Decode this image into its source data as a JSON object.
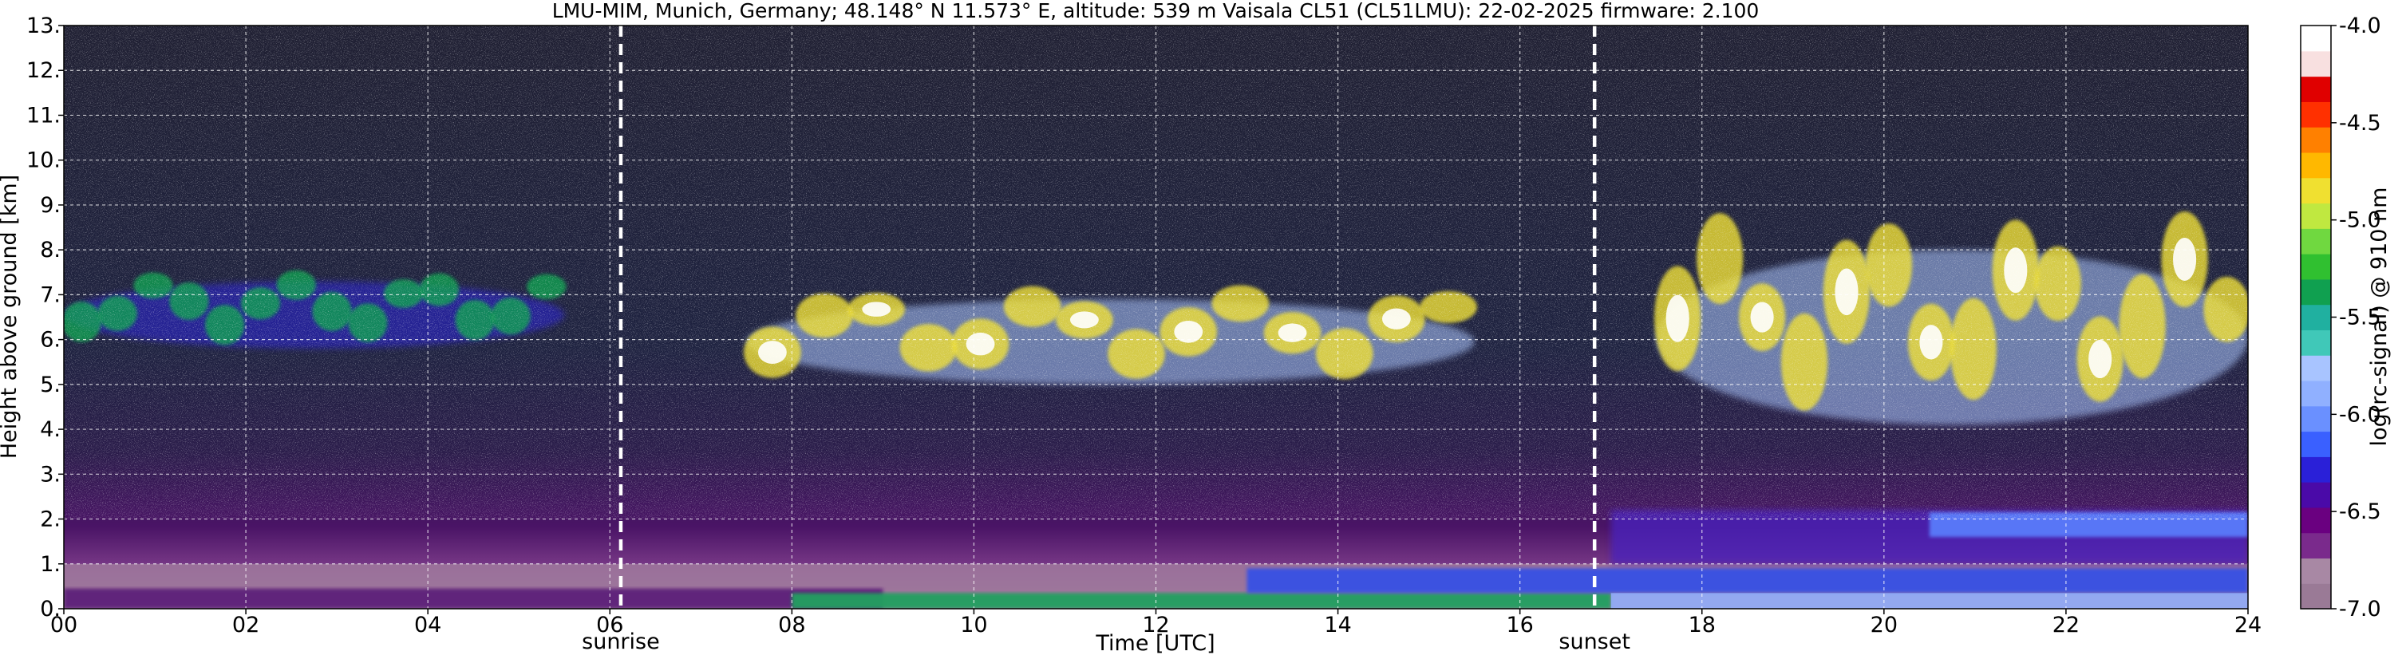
{
  "chart_data": {
    "type": "heatmap",
    "title": "LMU-MIM, Munich, Germany; 48.148° N 11.573° E, altitude: 539 m    Vaisala CL51 (CL51LMU): 22-02-2025    firmware: 2.100",
    "xlabel": "Time [UTC]",
    "ylabel": "Height above ground [km]",
    "xlim": [
      0,
      24
    ],
    "ylim": [
      0,
      13
    ],
    "x_ticks": [
      0,
      2,
      4,
      6,
      8,
      10,
      12,
      14,
      16,
      18,
      20,
      22,
      24
    ],
    "x_tick_labels": [
      "00",
      "02",
      "04",
      "06",
      "08",
      "10",
      "12",
      "14",
      "16",
      "18",
      "20",
      "22",
      "24"
    ],
    "y_ticks": [
      0,
      1,
      2,
      3,
      4,
      5,
      6,
      7,
      8,
      9,
      10,
      11,
      12,
      13
    ],
    "y_tick_labels": [
      "0.",
      "1.",
      "2.",
      "3.",
      "4.",
      "5.",
      "6.",
      "7.",
      "8.",
      "9.",
      "10.",
      "11.",
      "12.",
      "13."
    ],
    "grid": true,
    "events": [
      {
        "label": "sunrise",
        "x": 6.12
      },
      {
        "label": "sunset",
        "x": 16.82
      }
    ],
    "colorbar": {
      "label": "log(rc-signal) @ 910 nm",
      "ticks": [
        -4.0,
        -4.5,
        -5.0,
        -5.5,
        -6.0,
        -6.5,
        -7.0
      ],
      "tick_labels": [
        "-4.0",
        "-4.5",
        "-5.0",
        "-5.5",
        "-6.0",
        "-6.5",
        "-7.0"
      ],
      "range": [
        -7.0,
        -4.0
      ],
      "colors_bottom_to_top": [
        "#9a7a96",
        "#a888a4",
        "#7a2a8c",
        "#6a0080",
        "#4a0aa8",
        "#2a20d8",
        "#3a60ff",
        "#6a90ff",
        "#90b0ff",
        "#a8c4ff",
        "#40c8b8",
        "#20b0a0",
        "#10a050",
        "#30c030",
        "#70d840",
        "#c0e840",
        "#f0e030",
        "#ffb800",
        "#ff8000",
        "#ff3000",
        "#e00000",
        "#f8e0e0",
        "#ffffff"
      ]
    },
    "features": [
      {
        "name": "surface aerosol layer",
        "x": [
          0,
          24
        ],
        "y_km": [
          0,
          1.0
        ],
        "level": -6.3
      },
      {
        "name": "cirrus band morning",
        "x": [
          0,
          5.5
        ],
        "y_km": [
          5.8,
          7.3
        ],
        "level": -5.6
      },
      {
        "name": "cirrus band midday",
        "x": [
          7.5,
          15.5
        ],
        "y_km": [
          5.0,
          6.9
        ],
        "level": -5.0
      },
      {
        "name": "cloud band evening",
        "x": [
          17.5,
          24
        ],
        "y_km": [
          4.1,
          8.0
        ],
        "level": -5.0
      },
      {
        "name": "evening boundary layer top",
        "x": [
          17,
          24
        ],
        "y_km": [
          1.0,
          2.2
        ],
        "level": -6.3
      }
    ]
  }
}
